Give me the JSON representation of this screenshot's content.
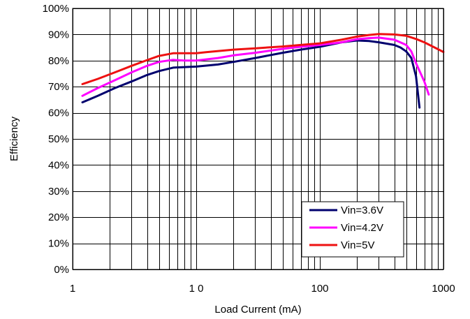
{
  "chart_data": {
    "type": "line",
    "xlabel": "Load Current (mA)",
    "ylabel": "Efficiency",
    "x_scale": "log",
    "xlim": [
      1,
      1000
    ],
    "ylim": [
      0,
      100
    ],
    "x_tick_values": [
      1,
      10,
      100,
      1000
    ],
    "x_tick_labels": [
      "1",
      "1 0",
      "100",
      "1000"
    ],
    "y_tick_values": [
      0,
      10,
      20,
      30,
      40,
      50,
      60,
      70,
      80,
      90,
      100
    ],
    "y_tick_labels": [
      "0%",
      "10%",
      "20%",
      "30%",
      "40%",
      "50%",
      "60%",
      "70%",
      "80%",
      "90%",
      "100%"
    ],
    "grid": true,
    "legend_position": "bottom-right",
    "series": [
      {
        "name": "Vin=3.6V",
        "color": "#00006e",
        "points": [
          [
            1.2,
            64
          ],
          [
            1.6,
            66.5
          ],
          [
            2.2,
            69.5
          ],
          [
            3,
            72
          ],
          [
            4,
            74.5
          ],
          [
            5,
            76
          ],
          [
            6.5,
            77.3
          ],
          [
            8,
            77.5
          ],
          [
            10,
            77.7
          ],
          [
            15,
            78.5
          ],
          [
            20,
            79.5
          ],
          [
            30,
            81
          ],
          [
            50,
            83
          ],
          [
            70,
            84.2
          ],
          [
            100,
            85.3
          ],
          [
            150,
            87
          ],
          [
            200,
            87.7
          ],
          [
            250,
            87.5
          ],
          [
            300,
            87
          ],
          [
            400,
            86
          ],
          [
            450,
            85
          ],
          [
            500,
            83.5
          ],
          [
            550,
            81
          ],
          [
            600,
            74
          ],
          [
            640,
            62
          ]
        ]
      },
      {
        "name": "Vin=4.2V",
        "color": "#ff00ff",
        "points": [
          [
            1.2,
            66.5
          ],
          [
            1.6,
            69.5
          ],
          [
            2.2,
            72.5
          ],
          [
            3,
            75.5
          ],
          [
            4,
            78
          ],
          [
            5,
            79.5
          ],
          [
            6.5,
            80.3
          ],
          [
            8,
            80
          ],
          [
            10,
            80
          ],
          [
            15,
            81
          ],
          [
            20,
            82
          ],
          [
            30,
            83
          ],
          [
            50,
            84.5
          ],
          [
            70,
            85.3
          ],
          [
            100,
            86
          ],
          [
            150,
            87
          ],
          [
            200,
            88.2
          ],
          [
            250,
            88.6
          ],
          [
            300,
            88.8
          ],
          [
            400,
            88
          ],
          [
            500,
            86
          ],
          [
            550,
            83.5
          ],
          [
            600,
            79
          ],
          [
            700,
            72
          ],
          [
            760,
            67
          ]
        ]
      },
      {
        "name": "Vin=5V",
        "color": "#ee1111",
        "points": [
          [
            1.2,
            71
          ],
          [
            1.6,
            73
          ],
          [
            2.2,
            75.5
          ],
          [
            3,
            78
          ],
          [
            4,
            80.2
          ],
          [
            5,
            81.8
          ],
          [
            6.5,
            82.8
          ],
          [
            8,
            82.8
          ],
          [
            10,
            82.8
          ],
          [
            12,
            83.2
          ],
          [
            20,
            84.2
          ],
          [
            30,
            84.7
          ],
          [
            50,
            85.4
          ],
          [
            70,
            86
          ],
          [
            100,
            86.6
          ],
          [
            150,
            88
          ],
          [
            200,
            89.2
          ],
          [
            250,
            89.8
          ],
          [
            300,
            90.2
          ],
          [
            400,
            90
          ],
          [
            500,
            89.5
          ],
          [
            600,
            88.3
          ],
          [
            700,
            87
          ],
          [
            850,
            85
          ],
          [
            1000,
            83.3
          ]
        ]
      }
    ]
  }
}
